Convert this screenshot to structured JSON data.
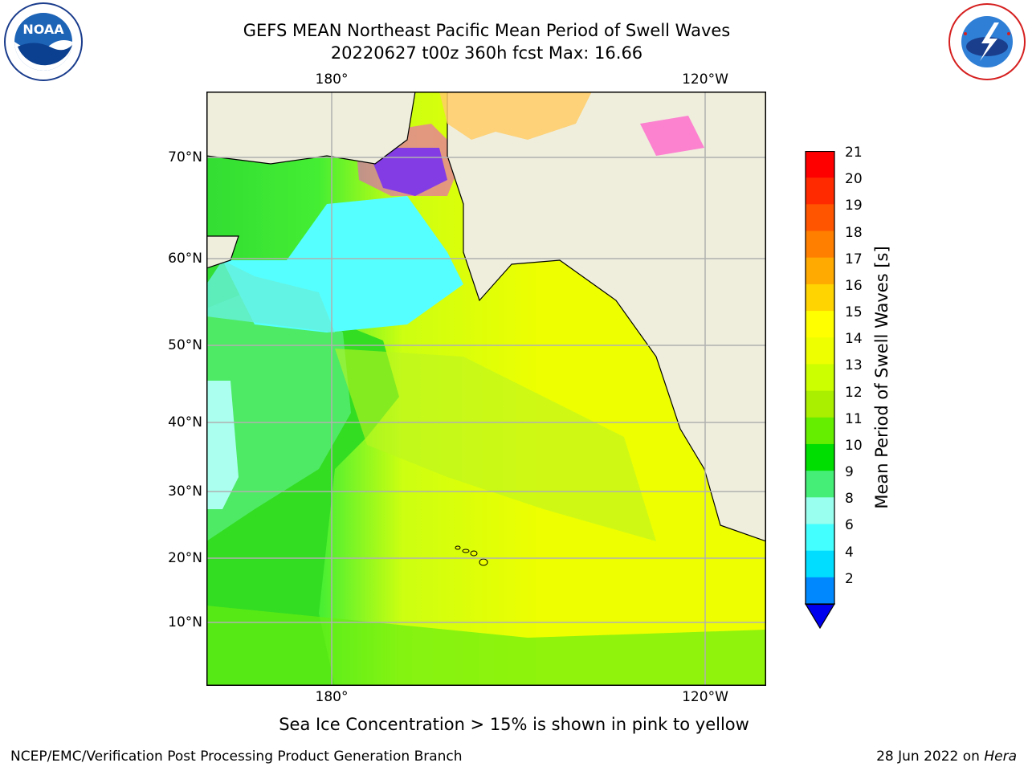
{
  "title": {
    "line1": "GEFS MEAN Northeast Pacific Mean Period of Swell Waves",
    "line2": "20220627 t00z 360h fcst   Max: 16.66"
  },
  "logos": {
    "left": "noaa-logo",
    "right": "national-weather-service-logo"
  },
  "map": {
    "region": "Northeast Pacific",
    "lon_labels_top": [
      "180°",
      "120°W"
    ],
    "lon_labels_bottom": [
      "180°",
      "120°W"
    ],
    "lat_labels": [
      "70°N",
      "60°N",
      "50°N",
      "40°N",
      "30°N",
      "20°N",
      "10°N"
    ],
    "land_color": "#efeedd",
    "grid_color": "#b0b0b0"
  },
  "colorbar": {
    "label": "Mean Period of Swell Waves [s]",
    "ticks": [
      "21",
      "20",
      "19",
      "18",
      "17",
      "16",
      "15",
      "14",
      "13",
      "12",
      "11",
      "10",
      "9",
      "8",
      "6",
      "4",
      "2"
    ],
    "colors_top_to_bottom": [
      "#ff0000",
      "#ff2a00",
      "#ff5500",
      "#ff7f00",
      "#ffaa00",
      "#ffd400",
      "#ffff00",
      "#eeff00",
      "#ccff00",
      "#aaee00",
      "#66ee00",
      "#00dd00",
      "#44ee77",
      "#99ffee",
      "#44ffff",
      "#00ddff",
      "#0088ff",
      "#0000ee"
    ]
  },
  "note": "Sea Ice Concentration > 15% is shown in pink to yellow",
  "footer": {
    "credit": "NCEP/EMC/Verification Post Processing Product Generation Branch",
    "date": "28 Jun 2022 on",
    "host": "Hera"
  }
}
